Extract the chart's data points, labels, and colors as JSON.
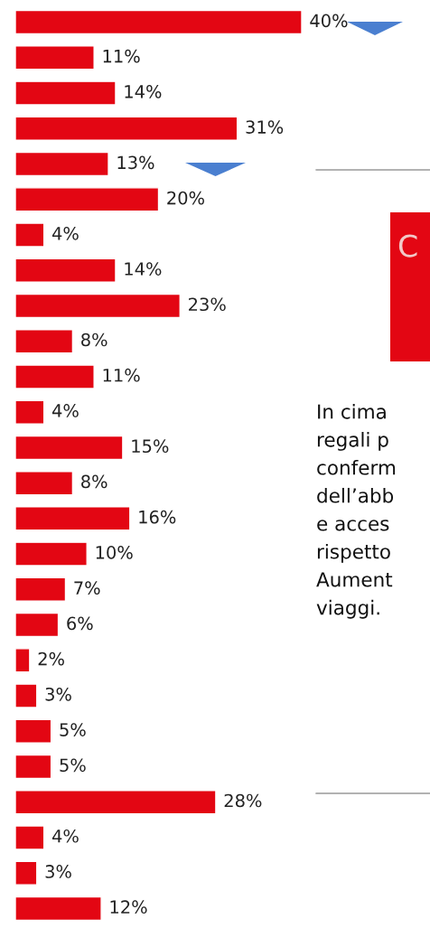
{
  "chart_data": {
    "type": "bar",
    "orientation": "horizontal",
    "color": "#e30613",
    "categories": [
      null,
      null,
      null,
      null,
      null,
      null,
      null,
      null,
      null,
      null,
      null,
      null,
      null,
      null,
      null,
      null,
      null,
      null,
      null,
      null,
      null,
      null,
      null,
      null,
      null,
      null
    ],
    "values": [
      40,
      11,
      14,
      31,
      13,
      20,
      4,
      14,
      23,
      8,
      11,
      4,
      15,
      8,
      16,
      10,
      7,
      6,
      2,
      3,
      5,
      5,
      28,
      4,
      3,
      12
    ],
    "value_labels": [
      "40%",
      "11%",
      "14%",
      "31%",
      "13%",
      "20%",
      "4%",
      "14%",
      "23%",
      "8%",
      "11%",
      "4%",
      "15%",
      "8%",
      "16%",
      "10%",
      "7%",
      "6%",
      "2%",
      "3%",
      "5%",
      "5%",
      "28%",
      "4%",
      "3%",
      "12%"
    ],
    "annotations": [
      "C",
      "In cima\nregali p\nconferm\ndell’abb\ne acces\nrispetto\nAument\nviaggi."
    ]
  }
}
